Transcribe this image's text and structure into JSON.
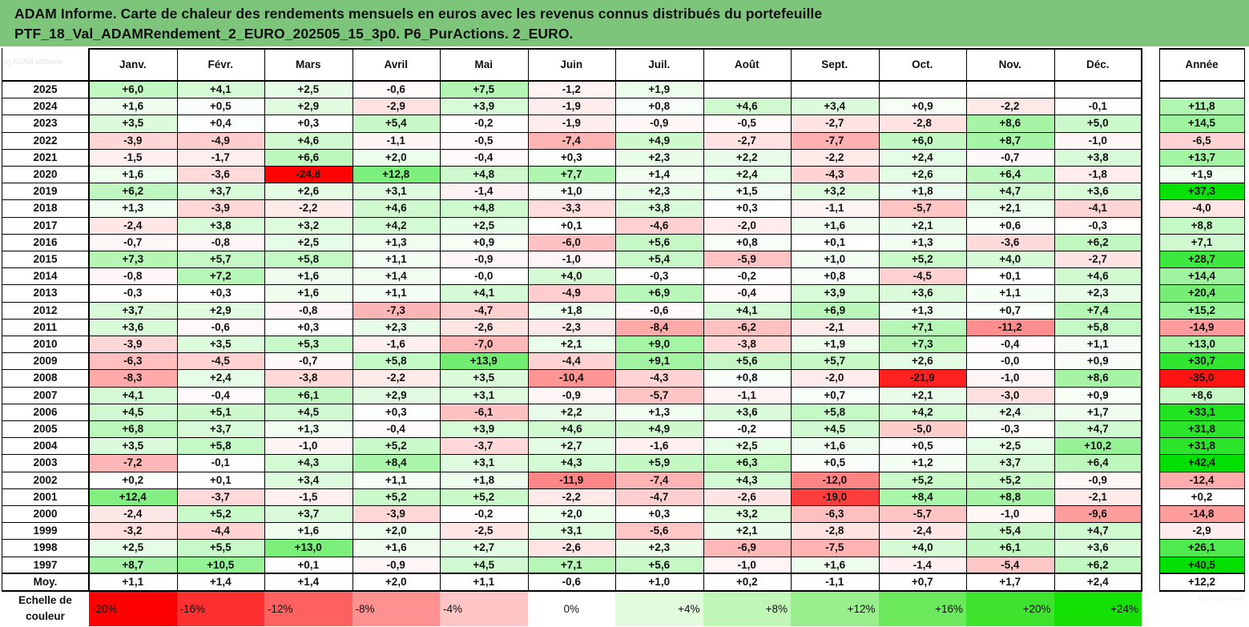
{
  "title": {
    "line1": "ADAM Informe. Carte de chaleur des rendements mensuels en euros avec les revenus connus distribués du portefeuille",
    "line2": "PTF_18_Val_ADAMRendement_2_EURO_202505_15_3p0. P6_PurActions. 2_EURO."
  },
  "watermark": "(c) ADAM software",
  "watermark_right": "ADAM software",
  "chart_data": {
    "type": "heatmap",
    "columns": [
      "Janv.",
      "Févr.",
      "Mars",
      "Avril",
      "Mai",
      "Juin",
      "Juil.",
      "Août",
      "Sept.",
      "Oct.",
      "Nov.",
      "Déc."
    ],
    "year_column": "Année",
    "rows": [
      {
        "label": "2025",
        "months": [
          "+6,0",
          "+4,1",
          "+2,5",
          "-0,6",
          "+7,5",
          "-1,2",
          "+1,9",
          "",
          "",
          "",
          "",
          ""
        ],
        "year": ""
      },
      {
        "label": "2024",
        "months": [
          "+1,6",
          "+0,5",
          "+2,9",
          "-2,9",
          "+3,9",
          "-1,9",
          "+0,8",
          "+4,6",
          "+3,4",
          "+0,9",
          "-2,2",
          "-0,1"
        ],
        "year": "+11,8"
      },
      {
        "label": "2023",
        "months": [
          "+3,5",
          "+0,4",
          "+0,3",
          "+5,4",
          "-0,2",
          "-1,9",
          "-0,9",
          "-0,5",
          "-2,7",
          "-2,8",
          "+8,6",
          "+5,0"
        ],
        "year": "+14,5"
      },
      {
        "label": "2022",
        "months": [
          "-3,9",
          "-4,9",
          "+4,6",
          "-1,1",
          "-0,5",
          "-7,4",
          "+4,9",
          "-2,7",
          "-7,7",
          "+6,0",
          "+8,7",
          "-1,0"
        ],
        "year": "-6,5"
      },
      {
        "label": "2021",
        "months": [
          "-1,5",
          "-1,7",
          "+6,6",
          "+2,0",
          "-0,4",
          "+0,3",
          "+2,3",
          "+2,2",
          "-2,2",
          "+2,4",
          "-0,7",
          "+3,8"
        ],
        "year": "+13,7"
      },
      {
        "label": "2020",
        "months": [
          "+1,6",
          "-3,6",
          "-24,8",
          "+12,8",
          "+4,8",
          "+7,7",
          "+1,4",
          "+2,4",
          "-4,3",
          "+2,6",
          "+6,4",
          "-1,8"
        ],
        "year": "+1,9"
      },
      {
        "label": "2019",
        "months": [
          "+6,2",
          "+3,7",
          "+2,6",
          "+3,1",
          "-1,4",
          "+1,0",
          "+2,3",
          "+1,5",
          "+3,2",
          "+1,8",
          "+4,7",
          "+3,6"
        ],
        "year": "+37,3"
      },
      {
        "label": "2018",
        "months": [
          "+1,3",
          "-3,9",
          "-2,2",
          "+4,6",
          "+4,8",
          "-3,3",
          "+3,8",
          "+0,3",
          "-1,1",
          "-5,7",
          "+2,1",
          "-4,1"
        ],
        "year": "-4,0"
      },
      {
        "label": "2017",
        "months": [
          "-2,4",
          "+3,8",
          "+3,2",
          "+4,2",
          "+2,5",
          "+0,1",
          "-4,6",
          "-2,0",
          "+1,6",
          "+2,1",
          "+0,6",
          "-0,3"
        ],
        "year": "+8,8"
      },
      {
        "label": "2016",
        "months": [
          "-0,7",
          "-0,8",
          "+2,5",
          "+1,3",
          "+0,9",
          "-6,0",
          "+5,6",
          "+0,8",
          "+0,1",
          "+1,3",
          "-3,6",
          "+6,2"
        ],
        "year": "+7,1"
      },
      {
        "label": "2015",
        "months": [
          "+7,3",
          "+5,7",
          "+5,8",
          "+1,1",
          "-0,9",
          "-1,0",
          "+5,4",
          "-5,9",
          "+1,0",
          "+5,2",
          "+4,0",
          "-2,7"
        ],
        "year": "+28,7"
      },
      {
        "label": "2014",
        "months": [
          "-0,8",
          "+7,2",
          "+1,6",
          "+1,4",
          "-0,0",
          "+4,0",
          "-0,3",
          "-0,2",
          "+0,8",
          "-4,5",
          "+0,1",
          "+4,6"
        ],
        "year": "+14,4"
      },
      {
        "label": "2013",
        "months": [
          "-0,3",
          "+0,3",
          "+1,6",
          "+1,1",
          "+4,1",
          "-4,9",
          "+6,9",
          "-0,4",
          "+3,9",
          "+3,6",
          "+1,1",
          "+2,3"
        ],
        "year": "+20,4"
      },
      {
        "label": "2012",
        "months": [
          "+3,7",
          "+2,9",
          "-0,8",
          "-7,3",
          "-4,7",
          "+1,8",
          "-0,6",
          "+4,1",
          "+6,9",
          "+1,3",
          "+0,7",
          "+7,4"
        ],
        "year": "+15,2"
      },
      {
        "label": "2011",
        "months": [
          "+3,6",
          "-0,6",
          "+0,3",
          "+2,3",
          "-2,6",
          "-2,3",
          "-8,4",
          "-6,2",
          "-2,1",
          "+7,1",
          "-11,2",
          "+5,8"
        ],
        "year": "-14,9"
      },
      {
        "label": "2010",
        "months": [
          "-3,9",
          "+3,5",
          "+5,3",
          "-1,6",
          "-7,0",
          "+2,1",
          "+9,0",
          "-3,8",
          "+1,9",
          "+7,3",
          "-0,4",
          "+1,1"
        ],
        "year": "+13,0"
      },
      {
        "label": "2009",
        "months": [
          "-6,3",
          "-4,5",
          "-0,7",
          "+5,8",
          "+13,9",
          "-4,4",
          "+9,1",
          "+5,6",
          "+5,7",
          "+2,6",
          "-0,0",
          "+0,9"
        ],
        "year": "+30,7"
      },
      {
        "label": "2008",
        "months": [
          "-8,3",
          "+2,4",
          "-3,8",
          "-2,2",
          "+3,5",
          "-10,4",
          "-4,3",
          "+0,8",
          "-2,0",
          "-21,9",
          "-1,0",
          "+8,6"
        ],
        "year": "-35,0"
      },
      {
        "label": "2007",
        "months": [
          "+4,1",
          "-0,4",
          "+6,1",
          "+2,9",
          "+3,1",
          "-0,9",
          "-5,7",
          "-1,1",
          "+0,7",
          "+2,1",
          "-3,0",
          "+0,9"
        ],
        "year": "+8,6"
      },
      {
        "label": "2006",
        "months": [
          "+4,5",
          "+5,1",
          "+4,5",
          "+0,3",
          "-6,1",
          "+2,2",
          "+1,3",
          "+3,6",
          "+5,8",
          "+4,2",
          "+2,4",
          "+1,7"
        ],
        "year": "+33,1"
      },
      {
        "label": "2005",
        "months": [
          "+6,8",
          "+3,7",
          "+1,3",
          "-0,4",
          "+3,9",
          "+4,6",
          "+4,9",
          "-0,2",
          "+4,5",
          "-5,0",
          "-0,3",
          "+4,7"
        ],
        "year": "+31,8"
      },
      {
        "label": "2004",
        "months": [
          "+3,5",
          "+5,8",
          "-1,0",
          "+5,2",
          "-3,7",
          "+2,7",
          "-1,6",
          "+2,5",
          "+1,6",
          "+0,5",
          "+2,5",
          "+10,2"
        ],
        "year": "+31,8"
      },
      {
        "label": "2003",
        "months": [
          "-7,2",
          "-0,1",
          "+4,3",
          "+8,4",
          "+3,1",
          "+4,3",
          "+5,9",
          "+6,3",
          "+0,5",
          "+1,2",
          "+3,7",
          "+6,4"
        ],
        "year": "+42,4"
      },
      {
        "label": "2002",
        "months": [
          "+0,2",
          "+0,1",
          "+3,4",
          "+1,1",
          "+1,8",
          "-11,9",
          "-7,4",
          "+4,3",
          "-12,0",
          "+5,2",
          "+5,2",
          "-0,9"
        ],
        "year": "-12,4"
      },
      {
        "label": "2001",
        "months": [
          "+12,4",
          "-3,7",
          "-1,5",
          "+5,2",
          "+5,2",
          "-2,2",
          "-4,7",
          "-2,6",
          "-19,0",
          "+8,4",
          "+8,8",
          "-2,1"
        ],
        "year": "+0,2"
      },
      {
        "label": "2000",
        "months": [
          "-2,4",
          "+5,2",
          "+3,7",
          "-3,9",
          "-0,2",
          "+2,0",
          "+0,3",
          "+3,2",
          "-6,3",
          "-5,7",
          "-1,0",
          "-9,6"
        ],
        "year": "-14,8"
      },
      {
        "label": "1999",
        "months": [
          "-3,2",
          "-4,4",
          "+1,6",
          "+2,0",
          "-2,5",
          "+3,1",
          "-5,6",
          "+2,1",
          "-2,8",
          "-2,4",
          "+5,4",
          "+4,7"
        ],
        "year": "-2,9"
      },
      {
        "label": "1998",
        "months": [
          "+2,5",
          "+5,5",
          "+13,0",
          "+1,6",
          "+2,7",
          "-2,6",
          "+2,3",
          "-6,9",
          "-7,5",
          "+4,0",
          "+6,1",
          "+3,6"
        ],
        "year": "+26,1"
      },
      {
        "label": "1997",
        "months": [
          "+8,7",
          "+10,5",
          "+0,1",
          "-0,9",
          "+4,5",
          "+7,1",
          "+5,6",
          "-1,0",
          "+1,6",
          "-1,4",
          "-5,4",
          "+6,2"
        ],
        "year": "+40,5"
      }
    ],
    "average_row": {
      "label": "Moy.",
      "months": [
        "+1,1",
        "+1,4",
        "+1,4",
        "+2,0",
        "+1,1",
        "-0,6",
        "+1,0",
        "+0,2",
        "-1,1",
        "+0,7",
        "+1,7",
        "+2,4"
      ],
      "year": "+12,2"
    },
    "legend": {
      "label": "Echelle de couleur",
      "steps": [
        {
          "text": "-20%",
          "value": -20,
          "color": "#ff0000"
        },
        {
          "text": "-16%",
          "value": -16,
          "color": "#ff3030"
        },
        {
          "text": "-12%",
          "value": -12,
          "color": "#ff6060"
        },
        {
          "text": "-8%",
          "value": -8,
          "color": "#ff9090"
        },
        {
          "text": "-4%",
          "value": -4,
          "color": "#ffc4c4"
        },
        {
          "text": "0%",
          "value": 0,
          "color": "#ffffff"
        },
        {
          "text": "+4%",
          "value": 4,
          "color": "#e2fbdd"
        },
        {
          "text": "+8%",
          "value": 8,
          "color": "#c0f6b6"
        },
        {
          "text": "+12%",
          "value": 12,
          "color": "#98ef8c"
        },
        {
          "text": "+16%",
          "value": 16,
          "color": "#6ce85c"
        },
        {
          "text": "+20%",
          "value": 20,
          "color": "#3de32c"
        },
        {
          "text": "+24%",
          "value": 24,
          "color": "#14e004"
        }
      ]
    },
    "colors": {
      "negative_max": "#ff0000",
      "positive_max": "#00df00",
      "neutral": "#ffffff",
      "title_band": "#7cc57a"
    }
  }
}
